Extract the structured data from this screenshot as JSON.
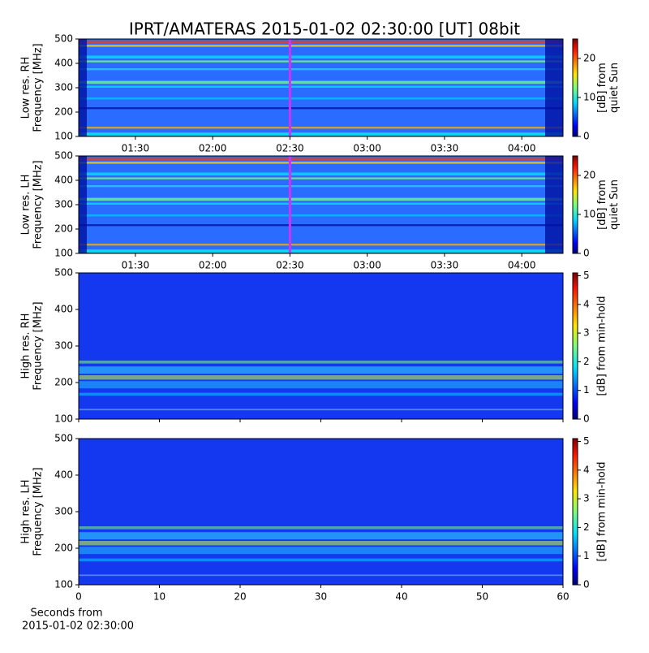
{
  "chart_data": [
    {
      "type": "spectrogram",
      "title": "IPRT/AMATERAS 2015-01-02 02:30:00 [UT]   08bit",
      "ylabel": [
        "Low res. RH",
        "Frequency [MHz]"
      ],
      "ylim": [
        100,
        500
      ],
      "yticks": [
        100,
        200,
        300,
        400,
        500
      ],
      "xlim": [
        "01:08",
        "04:16"
      ],
      "xticks": [
        "01:30",
        "02:00",
        "02:30",
        "03:00",
        "03:30",
        "04:00"
      ],
      "marker": "02:30",
      "marker_color": "#cc33ff",
      "colormap": "jet",
      "clim": [
        0,
        25
      ],
      "cticks": [
        0,
        10,
        20
      ],
      "clabel": [
        "[dB] from",
        "quiet Sun"
      ]
    },
    {
      "type": "spectrogram",
      "ylabel": [
        "Low res. LH",
        "Frequency [MHz]"
      ],
      "ylim": [
        100,
        500
      ],
      "yticks": [
        100,
        200,
        300,
        400,
        500
      ],
      "xlim": [
        "01:08",
        "04:16"
      ],
      "xticks": [
        "01:30",
        "02:00",
        "02:30",
        "03:00",
        "03:30",
        "04:00"
      ],
      "marker": "02:30",
      "marker_color": "#cc33ff",
      "colormap": "jet",
      "clim": [
        0,
        25
      ],
      "cticks": [
        0,
        10,
        20
      ],
      "clabel": [
        "[dB] from",
        "quiet Sun"
      ]
    },
    {
      "type": "spectrogram",
      "ylabel": [
        "High res. RH",
        "Frequency [MHz]"
      ],
      "ylim": [
        100,
        500
      ],
      "yticks": [
        100,
        200,
        300,
        400,
        500
      ],
      "xlim": [
        0,
        60
      ],
      "colormap": "jet",
      "clim": [
        0,
        5.1
      ],
      "cticks": [
        0,
        1,
        2,
        3,
        4,
        5
      ],
      "clabel": [
        "[dB] from min-hold"
      ]
    },
    {
      "type": "spectrogram",
      "ylabel": [
        "High res. LH",
        "Frequency [MHz]"
      ],
      "ylim": [
        100,
        500
      ],
      "yticks": [
        100,
        200,
        300,
        400,
        500
      ],
      "xlim": [
        0,
        60
      ],
      "xticks": [
        0,
        10,
        20,
        30,
        40,
        50,
        60
      ],
      "xlabel": [
        "Seconds from",
        "2015-01-02 02:30:00"
      ],
      "colormap": "jet",
      "clim": [
        0,
        5.1
      ],
      "cticks": [
        0,
        1,
        2,
        3,
        4,
        5
      ],
      "clabel": [
        "[dB] from min-hold"
      ]
    }
  ]
}
